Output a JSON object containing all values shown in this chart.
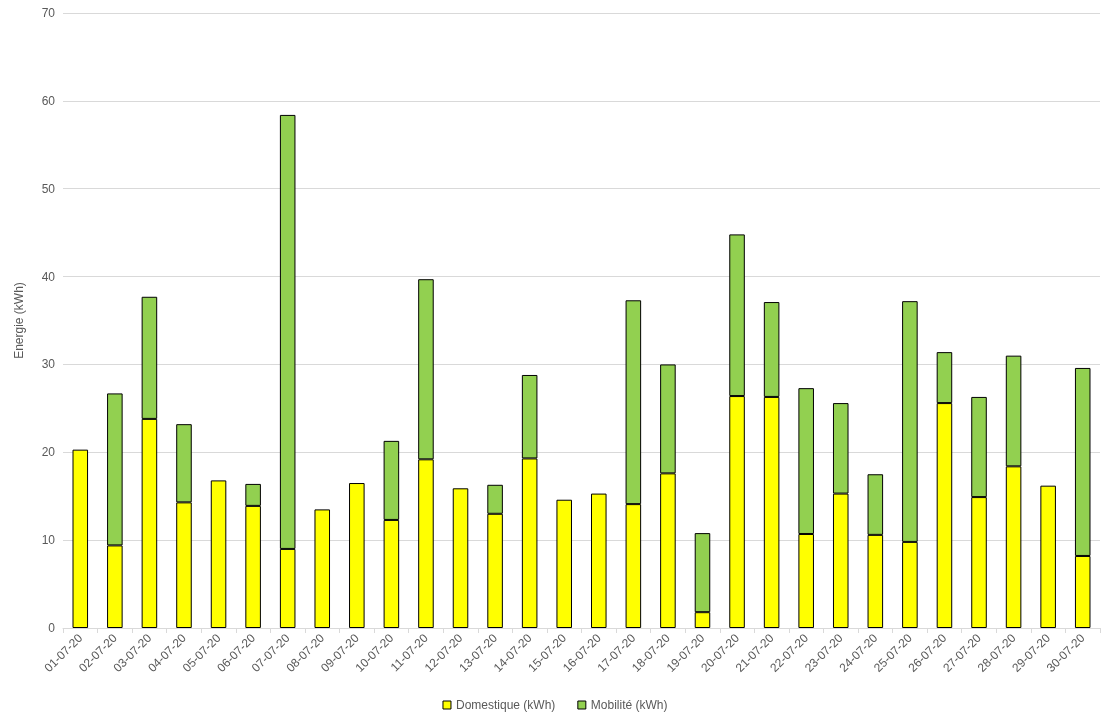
{
  "chart_data": {
    "type": "bar",
    "ylabel": "Energie (kWh)",
    "stacked": true,
    "categories": [
      "01-07-20",
      "02-07-20",
      "03-07-20",
      "04-07-20",
      "05-07-20",
      "06-07-20",
      "07-07-20",
      "08-07-20",
      "09-07-20",
      "10-07-20",
      "11-07-20",
      "12-07-20",
      "13-07-20",
      "14-07-20",
      "15-07-20",
      "16-07-20",
      "17-07-20",
      "18-07-20",
      "19-07-20",
      "20-07-20",
      "21-07-20",
      "22-07-20",
      "23-07-20",
      "24-07-20",
      "25-07-20",
      "26-07-20",
      "27-07-20",
      "28-07-20",
      "29-07-20",
      "30-07-20"
    ],
    "series": [
      {
        "name": "Domestique (kWh)",
        "color": "#ffff00",
        "values": [
          20.3,
          9.4,
          23.8,
          14.3,
          16.8,
          13.9,
          9.0,
          13.5,
          16.5,
          12.3,
          19.2,
          15.9,
          13.0,
          19.3,
          14.6,
          15.3,
          14.1,
          17.6,
          1.8,
          26.4,
          26.3,
          10.7,
          15.3,
          10.6,
          9.8,
          25.6,
          14.9,
          18.4,
          16.2,
          8.2
        ]
      },
      {
        "name": "Mobilité (kWh)",
        "color": "#92d050",
        "values": [
          null,
          17.3,
          13.9,
          8.9,
          null,
          2.5,
          49.4,
          null,
          null,
          9.0,
          20.5,
          null,
          3.3,
          9.5,
          null,
          null,
          23.2,
          12.4,
          9.0,
          18.4,
          10.8,
          16.6,
          10.3,
          6.9,
          27.4,
          5.8,
          11.4,
          12.6,
          null,
          21.4
        ]
      }
    ],
    "ylim": [
      0,
      70
    ],
    "yticks": [
      0,
      10,
      20,
      30,
      40,
      50,
      60,
      70
    ],
    "grid": "y",
    "legend": "bottom"
  }
}
